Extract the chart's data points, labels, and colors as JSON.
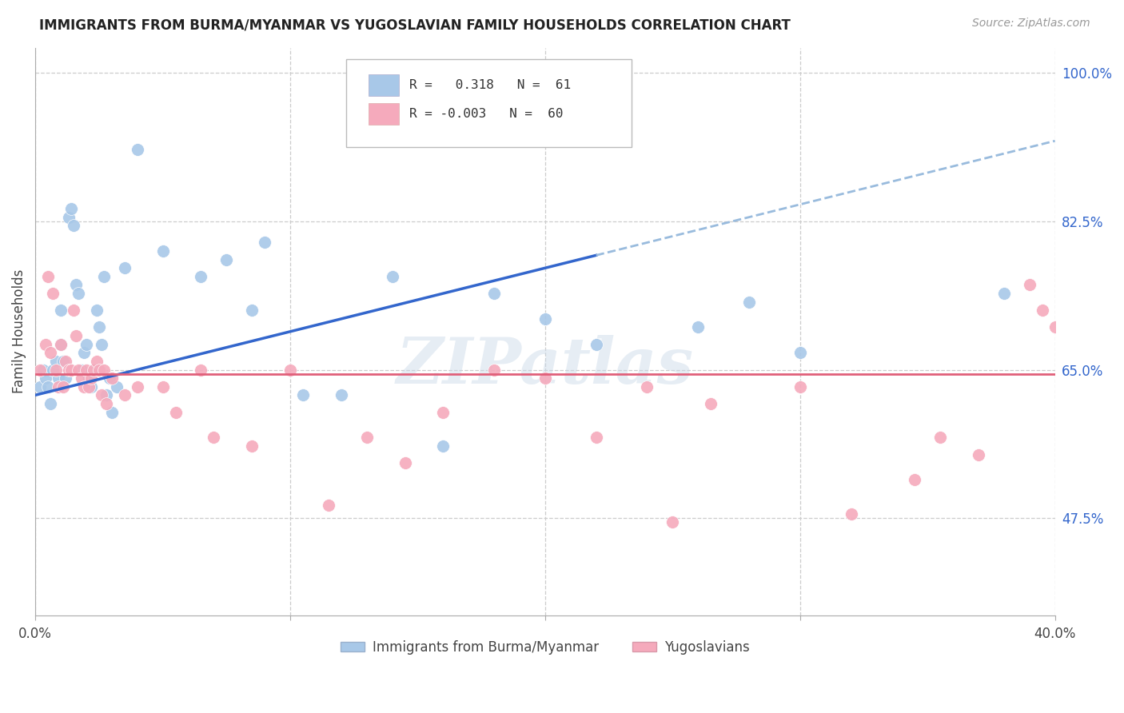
{
  "title": "IMMIGRANTS FROM BURMA/MYANMAR VS YUGOSLAVIAN FAMILY HOUSEHOLDS CORRELATION CHART",
  "source": "Source: ZipAtlas.com",
  "ylabel": "Family Households",
  "yticks": [
    47.5,
    65.0,
    82.5,
    100.0
  ],
  "xmin": 0.0,
  "xmax": 40.0,
  "ymin": 36.0,
  "ymax": 103.0,
  "blue_color": "#a8c8e8",
  "pink_color": "#f5aabc",
  "line_blue": "#3366cc",
  "line_pink": "#e0607a",
  "line_dashed_blue": "#99bbdd",
  "watermark": "ZIPatlas",
  "blue_line_x0": 0.0,
  "blue_line_y0": 62.0,
  "blue_line_x1": 40.0,
  "blue_line_y1": 92.0,
  "blue_solid_x1": 22.0,
  "pink_line_y": 64.5,
  "blue_scatter_x": [
    0.2,
    0.3,
    0.4,
    0.5,
    0.6,
    0.7,
    0.8,
    0.9,
    1.0,
    1.0,
    1.1,
    1.2,
    1.3,
    1.4,
    1.5,
    1.6,
    1.7,
    1.8,
    1.9,
    2.0,
    2.1,
    2.2,
    2.3,
    2.4,
    2.5,
    2.6,
    2.7,
    2.8,
    2.9,
    3.0,
    3.2,
    3.5,
    4.0,
    5.0,
    6.5,
    7.5,
    8.5,
    9.0,
    10.5,
    12.0,
    14.0,
    16.0,
    18.0,
    20.0,
    22.0,
    26.0,
    28.0,
    30.0,
    38.0
  ],
  "blue_scatter_y": [
    63.0,
    65.0,
    64.0,
    63.0,
    61.0,
    65.0,
    66.0,
    64.0,
    68.0,
    72.0,
    66.0,
    64.0,
    83.0,
    84.0,
    82.0,
    75.0,
    74.0,
    65.0,
    67.0,
    68.0,
    64.0,
    63.0,
    65.0,
    72.0,
    70.0,
    68.0,
    76.0,
    62.0,
    64.0,
    60.0,
    63.0,
    77.0,
    91.0,
    79.0,
    76.0,
    78.0,
    72.0,
    80.0,
    62.0,
    62.0,
    76.0,
    56.0,
    74.0,
    71.0,
    68.0,
    70.0,
    73.0,
    67.0,
    74.0
  ],
  "pink_scatter_x": [
    0.2,
    0.4,
    0.5,
    0.6,
    0.7,
    0.8,
    0.9,
    1.0,
    1.1,
    1.2,
    1.3,
    1.4,
    1.5,
    1.6,
    1.7,
    1.8,
    1.9,
    2.0,
    2.1,
    2.2,
    2.3,
    2.4,
    2.5,
    2.6,
    2.7,
    2.8,
    3.0,
    3.5,
    4.0,
    5.0,
    5.5,
    6.5,
    7.0,
    8.5,
    10.0,
    11.5,
    13.0,
    14.5,
    16.0,
    18.0,
    20.0,
    22.0,
    24.0,
    25.0,
    26.5,
    30.0,
    32.0,
    34.5,
    35.5,
    37.0,
    39.0,
    39.5,
    40.0
  ],
  "pink_scatter_y": [
    65.0,
    68.0,
    76.0,
    67.0,
    74.0,
    65.0,
    63.0,
    68.0,
    63.0,
    66.0,
    65.0,
    65.0,
    72.0,
    69.0,
    65.0,
    64.0,
    63.0,
    65.0,
    63.0,
    64.0,
    65.0,
    66.0,
    65.0,
    62.0,
    65.0,
    61.0,
    64.0,
    62.0,
    63.0,
    63.0,
    60.0,
    65.0,
    57.0,
    56.0,
    65.0,
    49.0,
    57.0,
    54.0,
    60.0,
    65.0,
    64.0,
    57.0,
    63.0,
    47.0,
    61.0,
    63.0,
    48.0,
    52.0,
    57.0,
    55.0,
    75.0,
    72.0,
    70.0
  ]
}
